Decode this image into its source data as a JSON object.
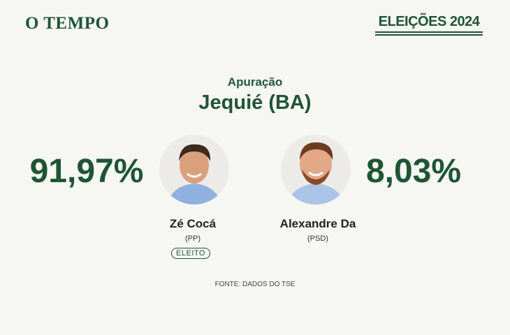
{
  "header": {
    "logo": "O TEMPO",
    "brand": "ELEIÇÕES 2024"
  },
  "title": {
    "subtitle": "Apuração",
    "city": "Jequié (BA)"
  },
  "candidates": [
    {
      "percent": "91,97%",
      "name": "Zé Cocá",
      "party": "(PP)",
      "status": "ELEITO"
    },
    {
      "percent": "8,03%",
      "name": "Alexandre Da",
      "party": "(PSD)"
    }
  ],
  "footer": {
    "source": "FONTE: DADOS DO TSE"
  }
}
